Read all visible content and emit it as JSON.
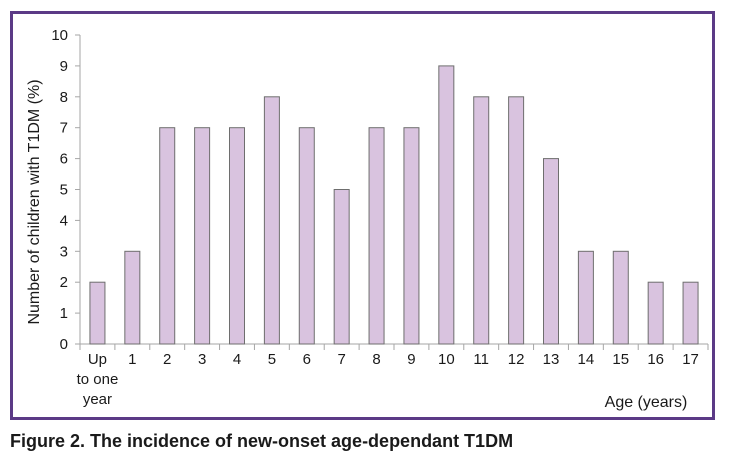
{
  "caption": "Figure 2. The incidence of new-onset age-dependant T1DM",
  "chart_data": {
    "type": "bar",
    "title": "",
    "ylabel": "Number of children with T1DM (%)",
    "xlabel": "Age (years)",
    "categories": [
      "Up to one year",
      "1",
      "2",
      "3",
      "4",
      "5",
      "6",
      "7",
      "8",
      "9",
      "10",
      "11",
      "12",
      "13",
      "14",
      "15",
      "16",
      "17"
    ],
    "category_label_lines": [
      [
        "Up",
        "to one",
        "year"
      ],
      [
        "1"
      ],
      [
        "2"
      ],
      [
        "3"
      ],
      [
        "4"
      ],
      [
        "5"
      ],
      [
        "6"
      ],
      [
        "7"
      ],
      [
        "8"
      ],
      [
        "9"
      ],
      [
        "10"
      ],
      [
        "11"
      ],
      [
        "12"
      ],
      [
        "13"
      ],
      [
        "14"
      ],
      [
        "15"
      ],
      [
        "16"
      ],
      [
        "17"
      ]
    ],
    "values": [
      2,
      3,
      7,
      7,
      7,
      8,
      7,
      5,
      7,
      7,
      9,
      8,
      8,
      6,
      3,
      3,
      2,
      2
    ],
    "ylim": [
      0,
      10
    ],
    "yticks": [
      0,
      1,
      2,
      3,
      4,
      5,
      6,
      7,
      8,
      9,
      10
    ],
    "grid": false,
    "legend": "none",
    "colors": {
      "bar_fill": "#d9c3df",
      "bar_stroke": "#6e6e6e",
      "frame": "#5b3a86",
      "axis": "#a6a6a6"
    }
  }
}
